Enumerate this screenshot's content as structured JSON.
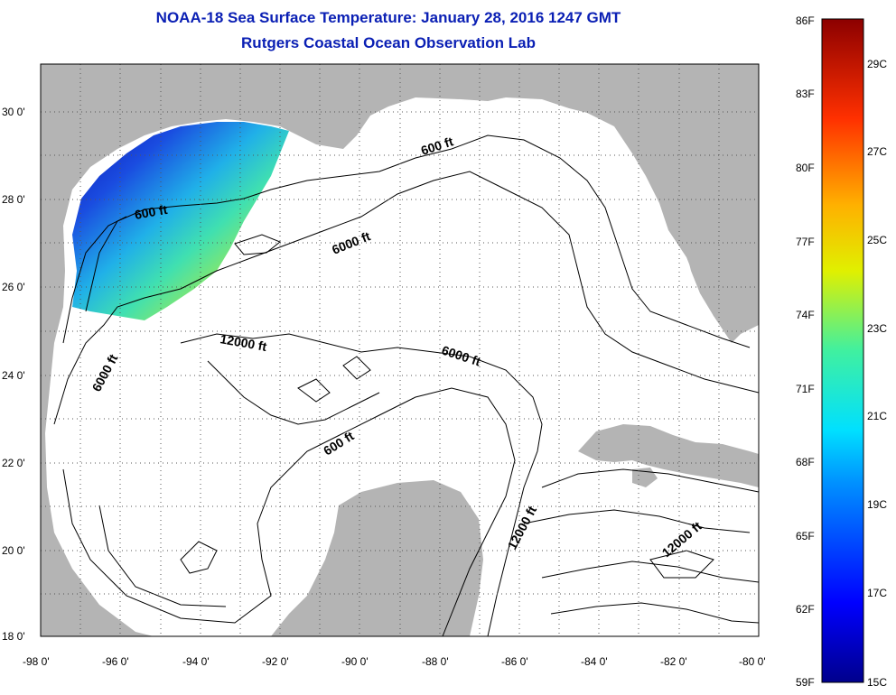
{
  "title": "NOAA-18 Sea Surface Temperature:  January 28, 2016 1247 GMT",
  "subtitle": "Rutgers Coastal Ocean Observation Lab",
  "map": {
    "lon_ticks": [
      "-98 0'",
      "-96 0'",
      "-94 0'",
      "-92 0'",
      "-90 0'",
      "-88 0'",
      "-86 0'",
      "-84 0'",
      "-82 0'",
      "-80 0'"
    ],
    "lat_ticks": [
      "18 0'",
      "20 0'",
      "22 0'",
      "24 0'",
      "26 0'",
      "28 0'",
      "30 0'"
    ],
    "land_color": "#b4b4b4",
    "contour_labels": [
      "600 ft",
      "600 ft",
      "600 ft",
      "6000 ft",
      "6000 ft",
      "6000 ft",
      "12000 ft",
      "12000 ft",
      "12000 ft"
    ]
  },
  "colorbar": {
    "f_labels": [
      "86F",
      "83F",
      "80F",
      "77F",
      "74F",
      "71F",
      "68F",
      "65F",
      "62F",
      "59F"
    ],
    "c_labels": [
      "29C",
      "27C",
      "25C",
      "23C",
      "21C",
      "19C",
      "17C",
      "15C"
    ]
  }
}
